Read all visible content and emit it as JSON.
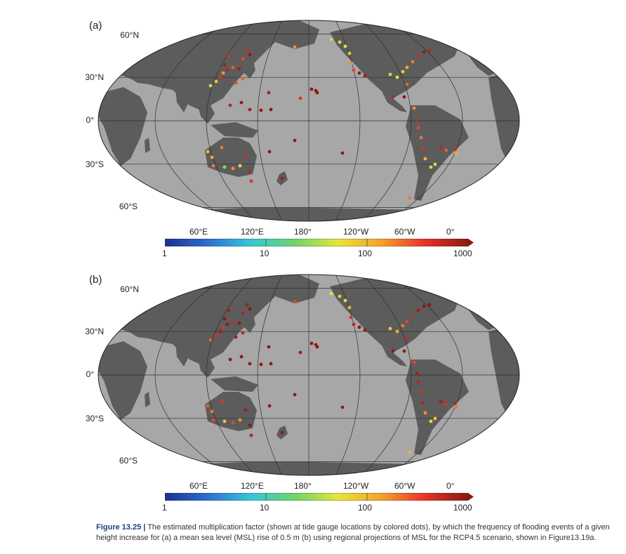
{
  "panels": [
    {
      "letter": "(a)",
      "lat_labels": [
        "60°N",
        "30°N",
        "0°",
        "30°S",
        "60°S"
      ],
      "lon_labels": [
        "60°E",
        "120°E",
        "180°",
        "120°W",
        "60°W",
        "0°"
      ],
      "colorbar_ticks": [
        "1",
        "10",
        "100",
        "1000"
      ]
    },
    {
      "letter": "(b)",
      "lat_labels": [
        "60°N",
        "30°N",
        "0°",
        "30°S",
        "60°S"
      ],
      "lon_labels": [
        "60°E",
        "120°E",
        "180°",
        "120°W",
        "60°W",
        "0°"
      ],
      "colorbar_ticks": [
        "1",
        "10",
        "100",
        "1000"
      ]
    }
  ],
  "colorbar": {
    "scale": "log",
    "range": [
      1,
      1000
    ],
    "colors": [
      "#1a2f8f",
      "#2f6fd2",
      "#38c7d8",
      "#6fd36a",
      "#e6e53a",
      "#f5a12b",
      "#e8312a",
      "#8b1a12"
    ]
  },
  "colors": {
    "ocean": "#a7a7a7",
    "land": "#5c5c5c",
    "grid": "#2e2e2e"
  },
  "caption": {
    "lead": "Figure 13.25 |",
    "text": "The estimated multiplication factor (shown at tide gauge locations by colored dots), by which the frequency of flooding events of a given height increase for (a) a mean sea level (MSL) rise of 0.5 m (b) using regional projections of MSL for the RCP4.5 scenario, shown in Figure13.19a."
  }
}
